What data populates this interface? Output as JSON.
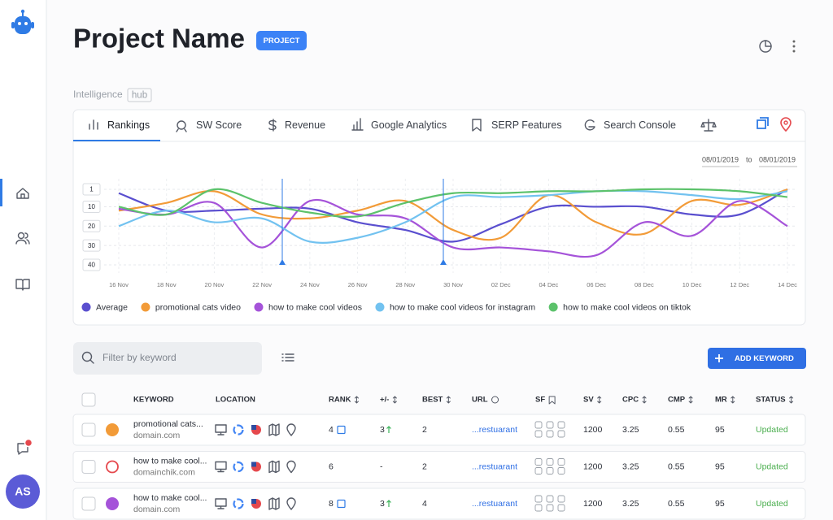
{
  "sidebar": {
    "avatar": "AS"
  },
  "header": {
    "title": "Project Name",
    "badge": "PROJECT",
    "section": "Intelligence",
    "section_tag": "hub"
  },
  "tabs": [
    "Rankings",
    "SW Score",
    "Revenue",
    "Google Analytics",
    "SERP Features",
    "Search Console"
  ],
  "date_range": {
    "from": "08/01/2019",
    "to_label": "to",
    "to": "08/01/2019"
  },
  "chart_data": {
    "type": "line",
    "categories": [
      "16 Nov",
      "18 Nov",
      "20 Nov",
      "22 Nov",
      "24 Nov",
      "26 Nov",
      "28 Nov",
      "30 Nov",
      "02 Dec",
      "04 Dec",
      "06 Dec",
      "08 Dec",
      "10 Dec",
      "12 Dec",
      "14 Dec"
    ],
    "series": [
      {
        "name": "Average",
        "color": "#5a4fcf",
        "values": [
          3,
          12,
          12,
          11,
          11,
          18,
          22,
          28,
          19,
          10,
          10,
          10,
          14,
          14,
          1
        ]
      },
      {
        "name": "promotional cats video",
        "color": "#f29b38",
        "values": [
          12,
          8,
          2,
          14,
          16,
          12,
          7,
          22,
          26,
          4,
          18,
          24,
          7,
          9,
          1
        ]
      },
      {
        "name": "how to make cool videos",
        "color": "#a553d9",
        "values": [
          11,
          14,
          8,
          31,
          7,
          14,
          16,
          31,
          31,
          33,
          35,
          18,
          25,
          7,
          20
        ]
      },
      {
        "name": "how to make cool videos for instagram",
        "color": "#72c2f0",
        "values": [
          20,
          12,
          18,
          16,
          28,
          26,
          18,
          5,
          5,
          4,
          2,
          2,
          4,
          6,
          2
        ]
      },
      {
        "name": "how to make cool videos on tiktok",
        "color": "#5cc26b",
        "values": [
          10,
          14,
          1,
          8,
          13,
          15,
          8,
          3,
          3,
          2,
          2,
          1,
          1,
          2,
          5
        ]
      }
    ],
    "ylim": [
      1,
      40
    ],
    "yticks": [
      1,
      10,
      20,
      30,
      40
    ],
    "inverted": true,
    "grid": true,
    "legend": "bottom"
  },
  "toolbar": {
    "filter_placeholder": "Filter by keyword",
    "add_button": "ADD KEYWORD"
  },
  "table": {
    "columns": [
      "KEYWORD",
      "LOCATION",
      "RANK",
      "+/-",
      "BEST",
      "URL",
      "SF",
      "SV",
      "CPC",
      "CMP",
      "MR",
      "STATUS"
    ],
    "rows": [
      {
        "keyword": "promotional cats...",
        "domain": "domain.com",
        "color": "#f29b38",
        "filled": true,
        "rank": 4,
        "change": 3,
        "best": 2,
        "url": "...restuarant",
        "sv": 1200,
        "cpc": 3.25,
        "cmp": 0.55,
        "mr": 95,
        "status": "Updated"
      },
      {
        "keyword": "how to make cool...",
        "domain": "domainchik.com",
        "color": "#e5484d",
        "filled": false,
        "rank": 6,
        "change": "-",
        "best": 2,
        "url": "...restuarant",
        "sv": 1200,
        "cpc": 3.25,
        "cmp": 0.55,
        "mr": 95,
        "status": "Updated"
      },
      {
        "keyword": "how to make cool...",
        "domain": "domain.com",
        "color": "#a553d9",
        "filled": true,
        "rank": 8,
        "change": 3,
        "best": 4,
        "url": "...restuarant",
        "sv": 1200,
        "cpc": 3.25,
        "cmp": 0.55,
        "mr": 95,
        "status": "Updated"
      }
    ]
  }
}
